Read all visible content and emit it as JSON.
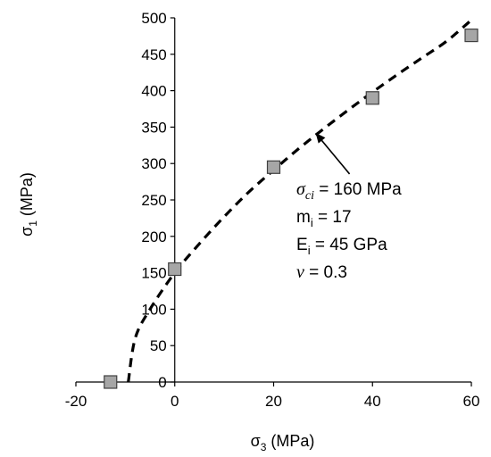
{
  "chart_data": {
    "type": "scatter",
    "xlabel": {
      "base": "σ",
      "sub": "3",
      "rest": " (MPa)"
    },
    "ylabel": {
      "base": "σ",
      "sub": "1",
      "rest": " (MPa)"
    },
    "xlim": [
      -20,
      60
    ],
    "ylim": [
      0,
      500
    ],
    "x_ticks": [
      -20,
      0,
      20,
      40,
      60
    ],
    "y_ticks": [
      0,
      50,
      100,
      150,
      200,
      250,
      300,
      350,
      400,
      450,
      500
    ],
    "grid": false,
    "series": [
      {
        "kind": "markers",
        "marker": "square",
        "color": "#a6a6a6",
        "edge_color": "#404040",
        "points": [
          {
            "x": -13,
            "y": 0
          },
          {
            "x": 0,
            "y": 155
          },
          {
            "x": 20,
            "y": 295
          },
          {
            "x": 40,
            "y": 390
          },
          {
            "x": 60,
            "y": 476
          }
        ]
      },
      {
        "kind": "dashed-curve",
        "color": "#000000",
        "points": [
          {
            "x": -9.4,
            "y": 0
          },
          {
            "x": -8,
            "y": 60
          },
          {
            "x": -5,
            "y": 100
          },
          {
            "x": 0,
            "y": 150
          },
          {
            "x": 5,
            "y": 190
          },
          {
            "x": 10,
            "y": 227
          },
          {
            "x": 15,
            "y": 261
          },
          {
            "x": 20,
            "y": 291
          },
          {
            "x": 25,
            "y": 320
          },
          {
            "x": 30,
            "y": 347
          },
          {
            "x": 35,
            "y": 373
          },
          {
            "x": 40,
            "y": 398
          },
          {
            "x": 45,
            "y": 422
          },
          {
            "x": 50,
            "y": 445
          },
          {
            "x": 55,
            "y": 468
          },
          {
            "x": 60,
            "y": 497
          }
        ]
      }
    ],
    "annotation": {
      "arrow_target": {
        "x": 28.5,
        "y": 342
      },
      "lines": [
        {
          "italic": "σ",
          "sub": "ci",
          "text": " = 160 MPa"
        },
        {
          "base": "m",
          "sub": "i",
          "text": " = 17"
        },
        {
          "base": "E",
          "sub": "i",
          "text": " = 45 GPa"
        },
        {
          "italic": "v",
          "sub": "",
          "text": " = 0.3"
        }
      ]
    }
  }
}
